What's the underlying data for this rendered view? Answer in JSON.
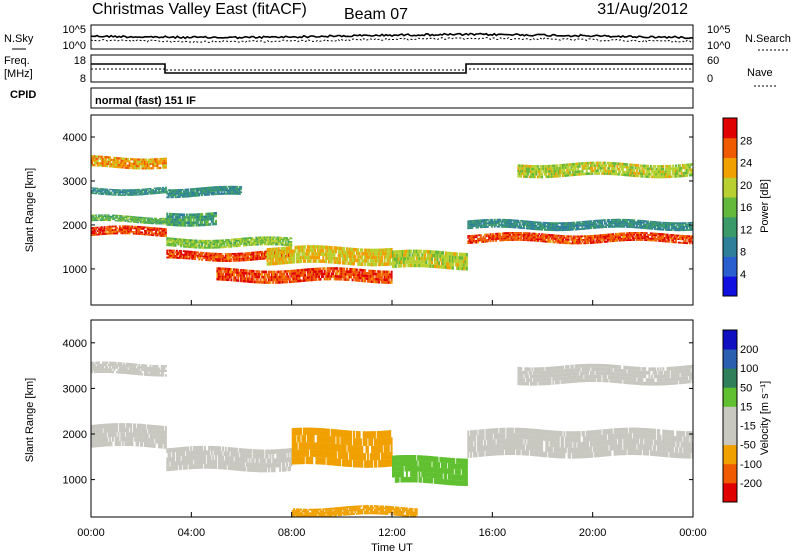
{
  "header": {
    "title": "Christmas Valley East (fitACF)",
    "beam": "Beam 07",
    "date": "31/Aug/2012"
  },
  "noise_panel": {
    "left_label": "N.Sky",
    "left_ticks": [
      "10^5",
      "10^0"
    ],
    "right_ticks": [
      "10^5",
      "10^0"
    ],
    "right_label": "N.Search"
  },
  "freq_panel": {
    "label_line1": "Freq.",
    "label_line2": "[MHz]",
    "left_ticks": [
      "18",
      "8"
    ],
    "right_ticks": [
      "60",
      "0"
    ],
    "right_label": "Nave"
  },
  "cpid": {
    "label": "CPID",
    "mode": "normal (fast) 151 IF"
  },
  "colors": {
    "power_scale": [
      "#1010e0",
      "#2a5fd0",
      "#2e7f9a",
      "#3a9a6a",
      "#64b83a",
      "#b8d030",
      "#f0a000",
      "#f05a00",
      "#e00000"
    ],
    "velocity_scale": [
      "#e00000",
      "#f05a00",
      "#f0a000",
      "#c8c8c0",
      "#c8c8c0",
      "#60c030",
      "#2e7f5a",
      "#2a5fb0",
      "#1010c0"
    ]
  },
  "chart_data": [
    {
      "type": "heatmap",
      "name": "power",
      "ylabel": "Slant Range [km]",
      "ylim": [
        180,
        4500
      ],
      "yticks": [
        "1000",
        "2000",
        "3000",
        "4000"
      ],
      "xlim": [
        "00:00",
        "24:00"
      ],
      "colorbar_label": "Power [dB]",
      "colorbar_ticks": [
        "4",
        "8",
        "12",
        "16",
        "20",
        "24",
        "28"
      ],
      "colorbar_range": [
        0,
        30
      ],
      "echo_bands": [
        {
          "t": [
            0,
            3
          ],
          "range_km": [
            1750,
            1950
          ],
          "value": 26
        },
        {
          "t": [
            0,
            3
          ],
          "range_km": [
            2050,
            2200
          ],
          "value": 14
        },
        {
          "t": [
            0,
            3
          ],
          "range_km": [
            3300,
            3550
          ],
          "value": 22
        },
        {
          "t": [
            0,
            3
          ],
          "range_km": [
            2700,
            2850
          ],
          "value": 10
        },
        {
          "t": [
            3,
            8
          ],
          "range_km": [
            1200,
            1400
          ],
          "value": 26
        },
        {
          "t": [
            3,
            8
          ],
          "range_km": [
            1500,
            1700
          ],
          "value": 16
        },
        {
          "t": [
            3,
            5
          ],
          "range_km": [
            2000,
            2300
          ],
          "value": 12
        },
        {
          "t": [
            3,
            6
          ],
          "range_km": [
            2650,
            2850
          ],
          "value": 10
        },
        {
          "t": [
            5,
            12
          ],
          "range_km": [
            700,
            1000
          ],
          "value": 26
        },
        {
          "t": [
            7,
            12
          ],
          "range_km": [
            1100,
            1500
          ],
          "value": 20
        },
        {
          "t": [
            12,
            15
          ],
          "range_km": [
            1000,
            1400
          ],
          "value": 18
        },
        {
          "t": [
            15,
            24
          ],
          "range_km": [
            1600,
            1800
          ],
          "value": 26
        },
        {
          "t": [
            15,
            24
          ],
          "range_km": [
            1900,
            2100
          ],
          "value": 10
        },
        {
          "t": [
            17,
            24
          ],
          "range_km": [
            3100,
            3400
          ],
          "value": 18
        }
      ]
    },
    {
      "type": "heatmap",
      "name": "velocity",
      "ylabel": "Slant Range [km]",
      "xlabel": "Time UT",
      "ylim": [
        180,
        4500
      ],
      "yticks": [
        "1000",
        "2000",
        "3000",
        "4000"
      ],
      "xticks": [
        "00:00",
        "04:00",
        "08:00",
        "12:00",
        "16:00",
        "20:00",
        "00:00"
      ],
      "xlim": [
        "00:00",
        "24:00"
      ],
      "colorbar_label": "Velocity [m s⁻¹]",
      "colorbar_ticks": [
        "-200",
        "-100",
        "-50",
        "-15",
        "15",
        "50",
        "100",
        "200"
      ],
      "echo_bands": [
        {
          "t": [
            0,
            3
          ],
          "range_km": [
            1700,
            2200
          ],
          "value": 0
        },
        {
          "t": [
            0,
            3
          ],
          "range_km": [
            3300,
            3550
          ],
          "value": 0
        },
        {
          "t": [
            3,
            8
          ],
          "range_km": [
            1200,
            1700
          ],
          "value": 0
        },
        {
          "t": [
            8,
            12
          ],
          "range_km": [
            1300,
            2100
          ],
          "value": -60
        },
        {
          "t": [
            12,
            15
          ],
          "range_km": [
            900,
            1500
          ],
          "value": 40
        },
        {
          "t": [
            15,
            24
          ],
          "range_km": [
            1500,
            2100
          ],
          "value": 0
        },
        {
          "t": [
            8,
            13
          ],
          "range_km": [
            200,
            400
          ],
          "value": -60
        },
        {
          "t": [
            17,
            24
          ],
          "range_km": [
            3100,
            3500
          ],
          "value": -20
        }
      ]
    }
  ]
}
